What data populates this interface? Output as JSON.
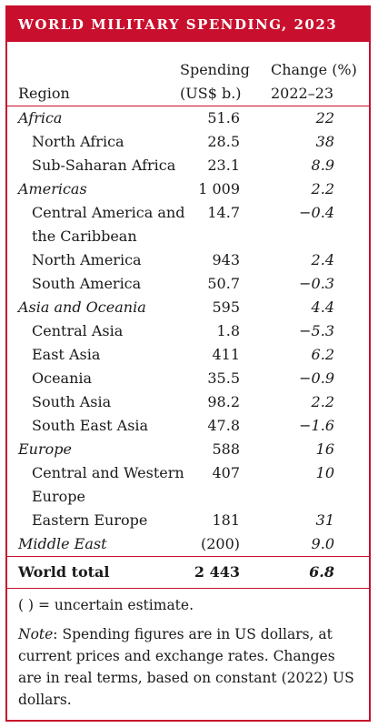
{
  "title": "WORLD MILITARY SPENDING, 2023",
  "headers": {
    "region": "Region",
    "spending_line1": "Spending",
    "spending_line2": "(US$ b.)",
    "change_line1": "Change (%)",
    "change_line2": "2022–23"
  },
  "rows": [
    {
      "name": "Africa",
      "spending": "51.6",
      "change": "22"
    },
    {
      "name": "North Africa",
      "spending": "28.5",
      "change": "38"
    },
    {
      "name": "Sub-Saharan Africa",
      "spending": "23.1",
      "change": "8.9"
    },
    {
      "name": "Americas",
      "spending": "1 009",
      "change": "2.2"
    },
    {
      "name": "Central America and the Caribbean",
      "spending": "14.7",
      "change": "−0.4"
    },
    {
      "name": "North America",
      "spending": "943",
      "change": "2.4"
    },
    {
      "name": "South America",
      "spending": "50.7",
      "change": "−0.3"
    },
    {
      "name": "Asia and Oceania",
      "spending": "595",
      "change": "4.4"
    },
    {
      "name": "Central Asia",
      "spending": "1.8",
      "change": "−5.3"
    },
    {
      "name": "East Asia",
      "spending": "411",
      "change": "6.2"
    },
    {
      "name": "Oceania",
      "spending": "35.5",
      "change": "−0.9"
    },
    {
      "name": "South Asia",
      "spending": "98.2",
      "change": "2.2"
    },
    {
      "name": "South East Asia",
      "spending": "47.8",
      "change": "−1.6"
    },
    {
      "name": "Europe",
      "spending": "588",
      "change": "16"
    },
    {
      "name": "Central and Western Europe",
      "spending": "407",
      "change": "10"
    },
    {
      "name": "Eastern Europe",
      "spending": "181",
      "change": "31"
    },
    {
      "name": "Middle East",
      "spending": "(200)",
      "change": "9.0"
    }
  ],
  "total": {
    "name": "World total",
    "spending": "2 443",
    "change": "6.8"
  },
  "footnote": "( ) = uncertain estimate.",
  "note_label": "Note",
  "note_text": ": Spending figures are in US dollars, at current prices and exchange rates. Changes are in real terms, based on constant (2022) US dollars.",
  "colors": {
    "accent": "#c8102e"
  }
}
